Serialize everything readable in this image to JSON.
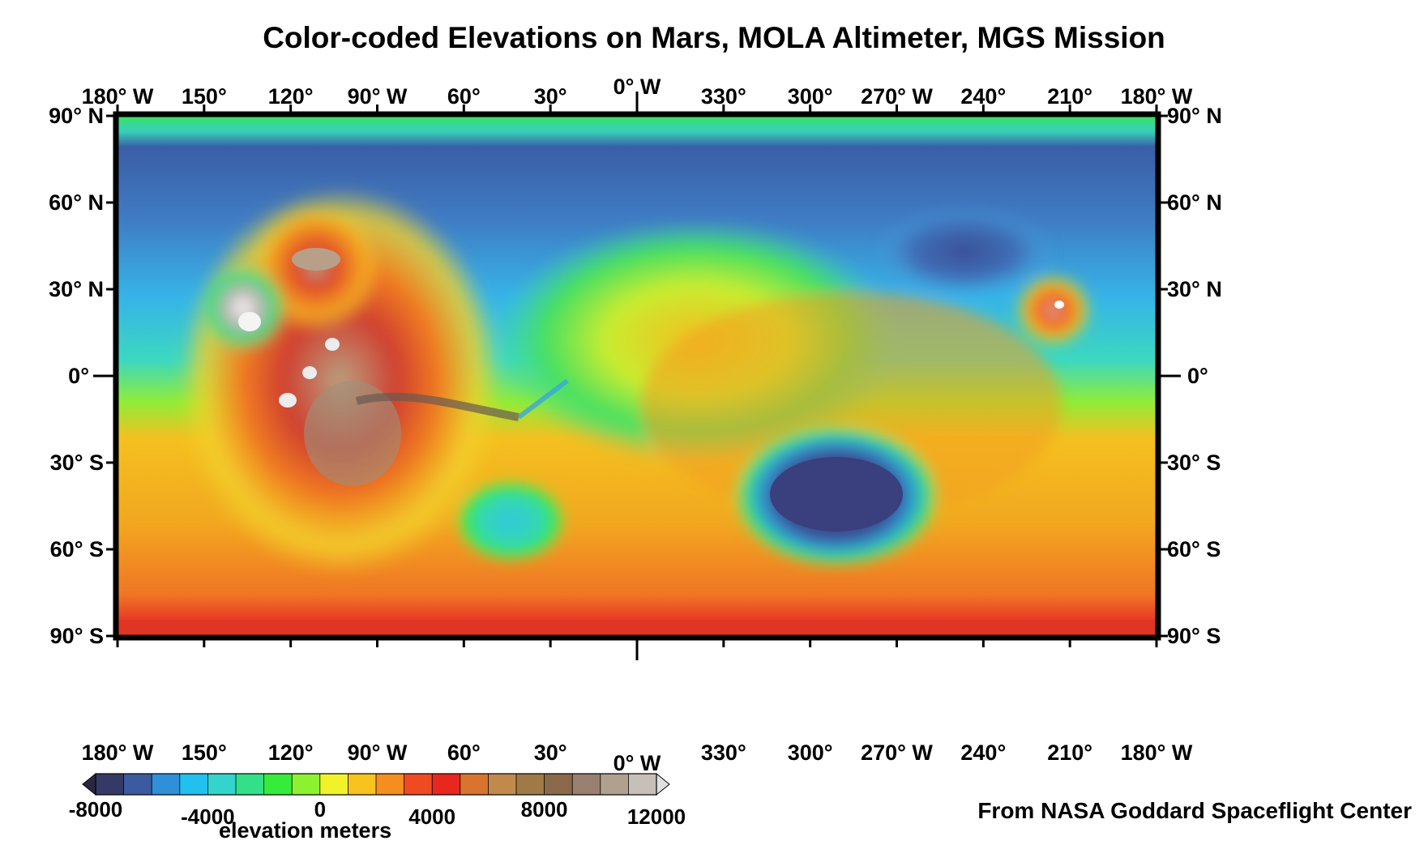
{
  "title": "Color-coded Elevations on Mars, MOLA Altimeter, MGS Mission",
  "credit": "From NASA Goddard Spaceflight Center",
  "colorbar": {
    "caption": "elevation meters",
    "min": -8000,
    "max": 12000,
    "step": 1000,
    "tick_labels": [
      "-8000",
      "-4000",
      "0",
      "4000",
      "8000",
      "12000"
    ],
    "tick_values": [
      -8000,
      -4000,
      0,
      4000,
      8000,
      12000
    ],
    "colors": [
      "#2a2640",
      "#343a66",
      "#3b5aa0",
      "#2f8fd8",
      "#22c0ee",
      "#33d4cc",
      "#33e089",
      "#35ec3a",
      "#8cf230",
      "#f2f22a",
      "#f8c21f",
      "#f58d1f",
      "#f04a22",
      "#e8281f",
      "#d8742e",
      "#c28a4a",
      "#a07a46",
      "#8a6a4a",
      "#9a8070",
      "#b0a090",
      "#c8c0b8",
      "#e0e0e0"
    ]
  },
  "axes": {
    "top_lon_labels": [
      "180° W",
      "150°",
      "120°",
      "90° W",
      "60°",
      "30°",
      "0° W",
      "330°",
      "300°",
      "270° W",
      "240°",
      "210°",
      "180° W"
    ],
    "bottom_lon_labels": [
      "180° W",
      "150°",
      "120°",
      "90° W",
      "60°",
      "30°",
      "0° W",
      "330°",
      "300°",
      "270° W",
      "240°",
      "210°",
      "180° W"
    ],
    "left_lat_labels": [
      "90° N",
      "60° N",
      "30° N",
      "0°",
      "30° S",
      "60° S",
      "90° S"
    ],
    "right_lat_labels": [
      "90° N",
      "60° N",
      "30° N",
      "0°",
      "30° S",
      "60° S",
      "90° S"
    ]
  },
  "features": [
    {
      "id": "olympus-mons",
      "lon_w": 134,
      "lat": 18
    },
    {
      "id": "alba-mons",
      "lon_w": 110,
      "lat": 40
    },
    {
      "id": "tharsis-volcanoes",
      "lon_w": 113,
      "lat": 0
    },
    {
      "id": "valles-marineris",
      "lon_w": 72,
      "lat": -10
    },
    {
      "id": "hellas-basin",
      "lon_w": 290,
      "lat": -42
    },
    {
      "id": "argyre-basin",
      "lon_w": 43,
      "lat": -50
    },
    {
      "id": "elysium-mons",
      "lon_w": 213,
      "lat": 25
    }
  ]
}
